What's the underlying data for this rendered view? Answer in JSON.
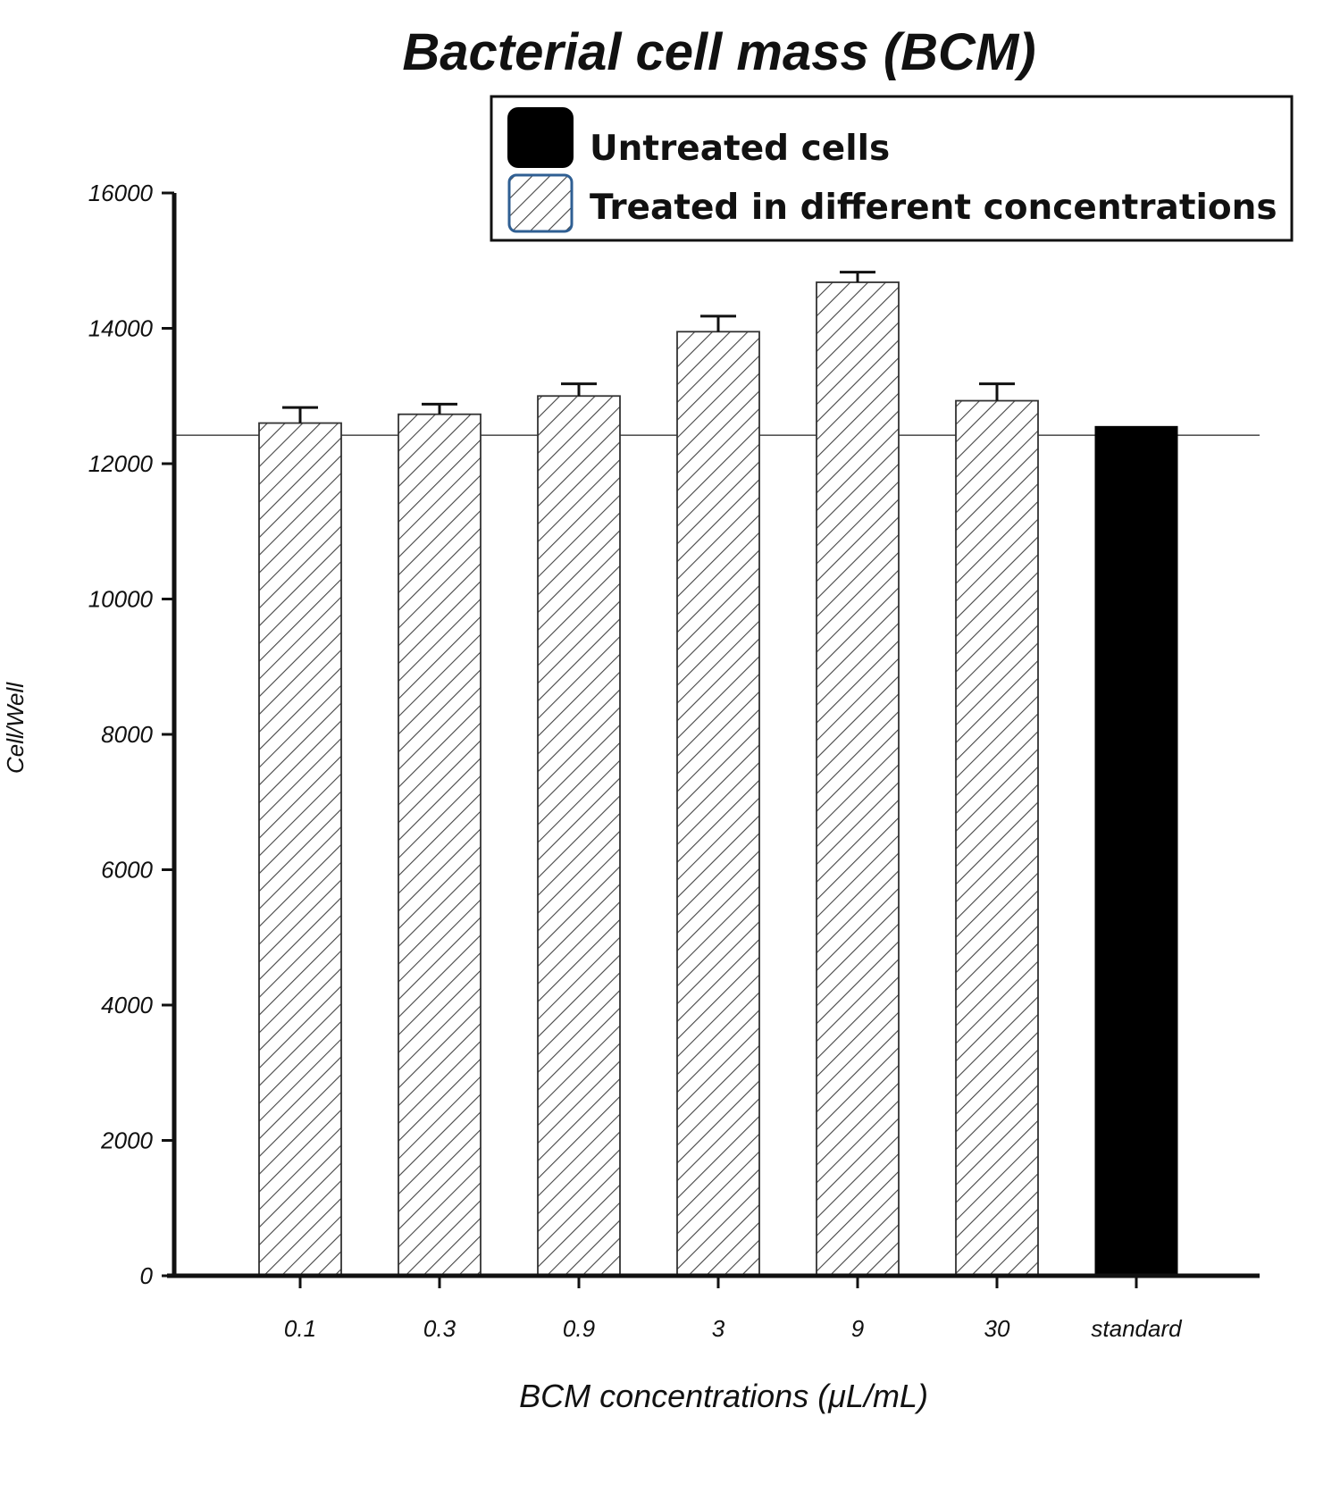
{
  "chart_data": {
    "type": "bar",
    "title": "Bacterial cell mass (BCM)",
    "xlabel": "BCM concentrations (μL/mL)",
    "ylabel": "Cell/Well",
    "ylim": [
      0,
      16000
    ],
    "yticks": [
      "0",
      "2000",
      "4000",
      "6000",
      "8000",
      "10000",
      "12000",
      "14000",
      "16000"
    ],
    "categories": [
      "0.1",
      "0.3",
      "0.9",
      "3",
      "9",
      "30",
      "standard"
    ],
    "series": [
      {
        "name": "Untreated cells",
        "fill": "solid",
        "values": [
          null,
          null,
          null,
          null,
          null,
          null,
          12550
        ],
        "errors": [
          null,
          null,
          null,
          null,
          null,
          null,
          0
        ]
      },
      {
        "name": "Treated in different concentrations",
        "fill": "hatched",
        "values": [
          12600,
          12730,
          13000,
          13950,
          14680,
          12930,
          null
        ],
        "errors": [
          230,
          150,
          180,
          230,
          150,
          250,
          null
        ]
      }
    ],
    "reference_line": 12420,
    "legend_position": "top-right",
    "grid": false,
    "colors": {
      "solid": "#000000",
      "hatch": "#444444",
      "axis": "#111111"
    }
  }
}
